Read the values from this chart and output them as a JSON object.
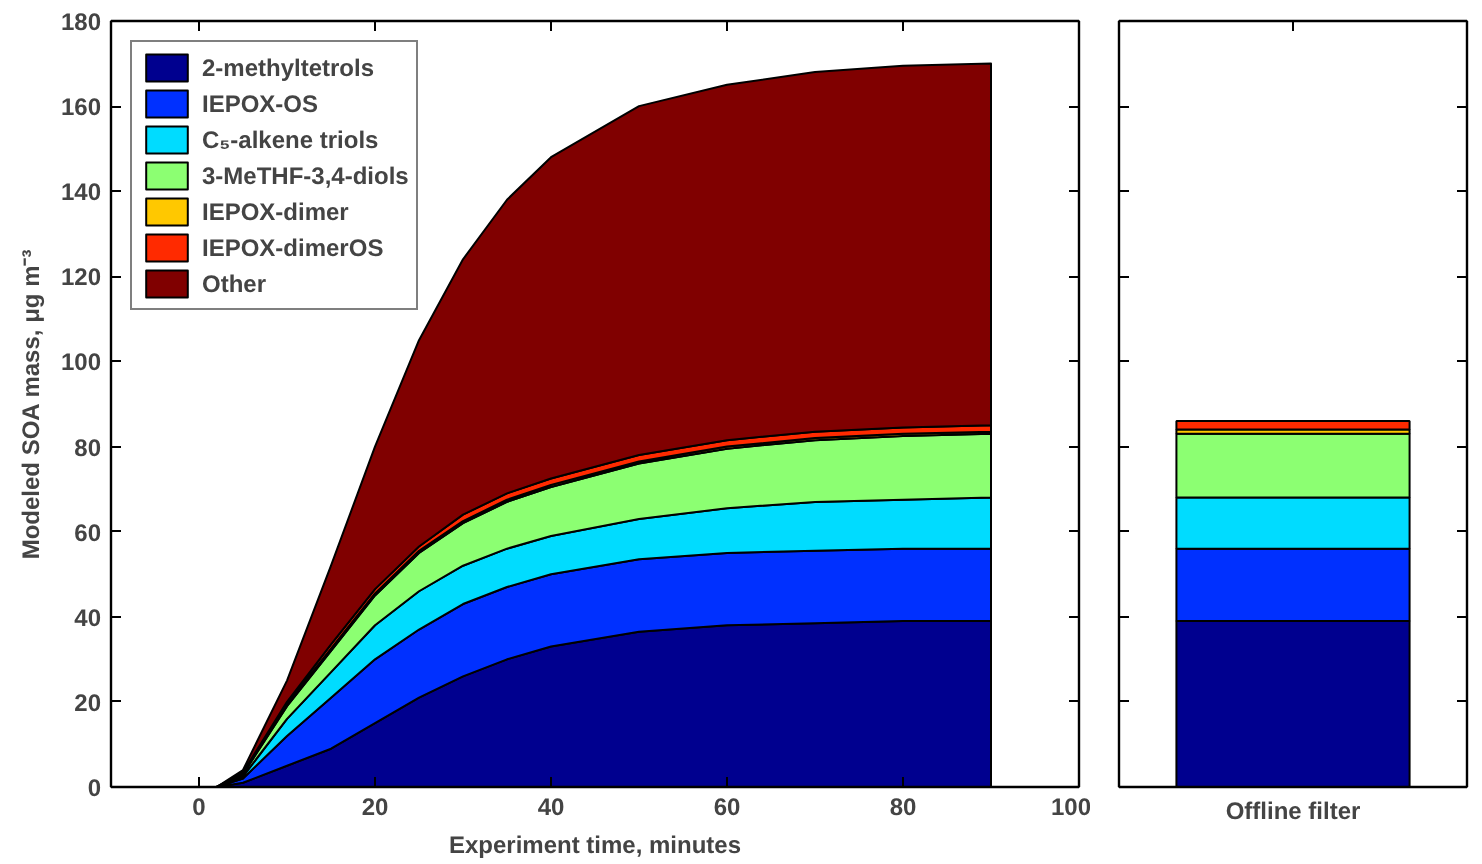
{
  "chart_data": [
    {
      "type": "area",
      "stacked": true,
      "xlabel": "Experiment time, minutes",
      "ylabel": "Modeled SOA mass, μg m⁻³",
      "x": [
        0,
        2,
        5,
        10,
        15,
        20,
        25,
        30,
        35,
        40,
        50,
        60,
        70,
        80,
        90
      ],
      "xlim": [
        -10,
        100
      ],
      "xticks": [
        0,
        20,
        40,
        60,
        80,
        100
      ],
      "ylim": [
        0,
        180
      ],
      "yticks": [
        0,
        20,
        40,
        60,
        80,
        100,
        120,
        140,
        160,
        180
      ],
      "legend": "top left",
      "grid": false,
      "series": [
        {
          "name": "2-methyltetrols",
          "color": "#00008f",
          "values": [
            0,
            0,
            1,
            5,
            9,
            15,
            21,
            26,
            30,
            33,
            36.5,
            38,
            38.5,
            39,
            39
          ]
        },
        {
          "name": "IEPOX-OS",
          "color": "#0030ff",
          "values": [
            0,
            0,
            1,
            7,
            12,
            15,
            16,
            17,
            17,
            17,
            17,
            17,
            17,
            17,
            17
          ]
        },
        {
          "name": "C₅-alkene triols",
          "color": "#00dcff",
          "values": [
            0,
            0,
            0.5,
            4,
            6,
            8,
            9,
            9,
            9,
            9,
            9.5,
            10.5,
            11.5,
            11.5,
            12
          ]
        },
        {
          "name": "3-MeTHF-3,4-diols",
          "color": "#8cff72",
          "values": [
            0,
            0,
            0.5,
            3,
            5,
            7,
            9,
            10,
            11,
            11.5,
            13,
            14,
            14.5,
            15,
            15
          ]
        },
        {
          "name": "IEPOX-dimer",
          "color": "#ffc800",
          "values": [
            0,
            0,
            0.2,
            0.5,
            0.5,
            0.5,
            0.5,
            0.5,
            0.5,
            0.5,
            0.5,
            0.5,
            0.5,
            0.5,
            0.5
          ]
        },
        {
          "name": "IEPOX-dimerOS",
          "color": "#ff2a00",
          "values": [
            0,
            0,
            0.3,
            0.5,
            1,
            1,
            1,
            1.5,
            1.5,
            1.5,
            1.5,
            1.5,
            1.5,
            1.5,
            1.5
          ]
        },
        {
          "name": "Other",
          "color": "#800000",
          "values": [
            0,
            0,
            0.5,
            5,
            18.5,
            33.5,
            48.5,
            60,
            69,
            75.5,
            82,
            83.5,
            84.5,
            85,
            85
          ]
        }
      ]
    },
    {
      "type": "bar",
      "stacked": true,
      "categories": [
        "Offline filter"
      ],
      "ylim": [
        0,
        180
      ],
      "yticks": [
        0,
        20,
        40,
        60,
        80,
        100,
        120,
        140,
        160,
        180
      ],
      "tick_labels": "x",
      "grid": false,
      "series": [
        {
          "color": "#00008f",
          "values": [
            39
          ]
        },
        {
          "color": "#0030ff",
          "values": [
            17
          ]
        },
        {
          "color": "#00dcff",
          "values": [
            12
          ]
        },
        {
          "color": "#8cff72",
          "values": [
            15
          ]
        },
        {
          "color": "#ffc800",
          "values": [
            1
          ]
        },
        {
          "color": "#ff2a00",
          "values": [
            2
          ]
        }
      ]
    }
  ]
}
